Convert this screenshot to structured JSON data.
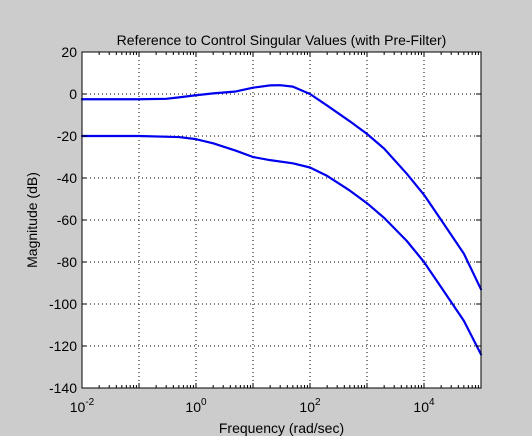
{
  "chart_data": {
    "type": "line",
    "title": "Reference to Control Singular Values (with Pre-Filter)",
    "xlabel": "Frequency (rad/sec)",
    "ylabel": "Magnitude (dB)",
    "x_scale": "log",
    "xlim": [
      0.01,
      100000
    ],
    "ylim": [
      -140,
      20
    ],
    "x_ticks": [
      {
        "base": "10",
        "exp": "-2"
      },
      {
        "base": "10",
        "exp": "0"
      },
      {
        "base": "10",
        "exp": "2"
      },
      {
        "base": "10",
        "exp": "4"
      }
    ],
    "x_tick_values": [
      0.01,
      1,
      100,
      10000
    ],
    "y_ticks": [
      "20",
      "0",
      "-20",
      "-40",
      "-60",
      "-80",
      "-100",
      "-120",
      "-140"
    ],
    "y_tick_values": [
      20,
      0,
      -20,
      -40,
      -60,
      -80,
      -100,
      -120,
      -140
    ],
    "grid": true,
    "line_color": "#0000ee",
    "series": [
      {
        "x": [
          0.01,
          0.1,
          0.3,
          0.5,
          1,
          2,
          5,
          10,
          20,
          30,
          50,
          100,
          200,
          500,
          1000,
          2000,
          5000,
          10000,
          20000,
          50000,
          100000
        ],
        "values": [
          -2.5,
          -2.5,
          -2.3,
          -1.6,
          -0.6,
          0.3,
          1.2,
          3,
          4.1,
          4.2,
          3.5,
          0,
          -5.5,
          -13,
          -19,
          -26,
          -38,
          -48,
          -60,
          -76,
          -93
        ]
      },
      {
        "x": [
          0.01,
          0.1,
          0.5,
          1,
          2,
          5,
          10,
          20,
          50,
          100,
          200,
          500,
          1000,
          2000,
          5000,
          10000,
          20000,
          50000,
          100000
        ],
        "values": [
          -20,
          -20,
          -20.5,
          -21.5,
          -23.5,
          -27,
          -30,
          -31.5,
          -33,
          -35,
          -39,
          -46,
          -52,
          -59,
          -70,
          -80,
          -92,
          -108,
          -124
        ]
      }
    ]
  }
}
